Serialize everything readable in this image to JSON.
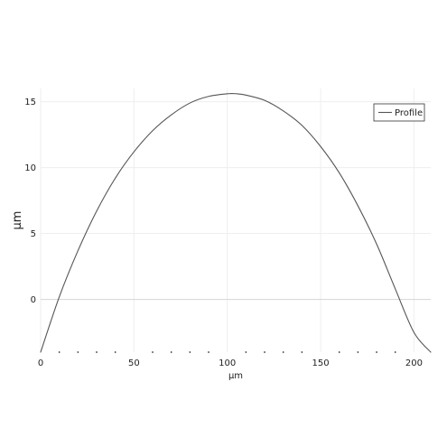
{
  "chart_data": {
    "type": "line",
    "title": "",
    "xlabel": "µm",
    "ylabel": "µm",
    "xlim": [
      0,
      209
    ],
    "ylim": [
      -4,
      16
    ],
    "x_ticks": [
      0,
      50,
      100,
      150,
      200
    ],
    "x_tick_labels": [
      "0",
      "50",
      "100",
      "150",
      "200"
    ],
    "x_minor_ticks": [
      10,
      20,
      30,
      40,
      60,
      70,
      80,
      90,
      110,
      120,
      130,
      140,
      160,
      170,
      180,
      190
    ],
    "y_ticks": [
      0,
      5,
      10,
      15
    ],
    "y_tick_labels": [
      "0",
      "5",
      "10",
      "15"
    ],
    "grid": true,
    "legend_position": "top-right",
    "series": [
      {
        "name": "Profile",
        "color": "#555555",
        "x": [
          0,
          10,
          20,
          30,
          40,
          50,
          60,
          70,
          80,
          90,
          100,
          105,
          110,
          120,
          130,
          140,
          150,
          160,
          170,
          180,
          190,
          200,
          209
        ],
        "y": [
          -4.0,
          0.2,
          3.7,
          6.7,
          9.2,
          11.2,
          12.8,
          14.0,
          14.9,
          15.4,
          15.6,
          15.6,
          15.5,
          15.1,
          14.3,
          13.2,
          11.6,
          9.6,
          7.1,
          4.2,
          0.8,
          -2.5,
          -4.0
        ]
      }
    ]
  }
}
